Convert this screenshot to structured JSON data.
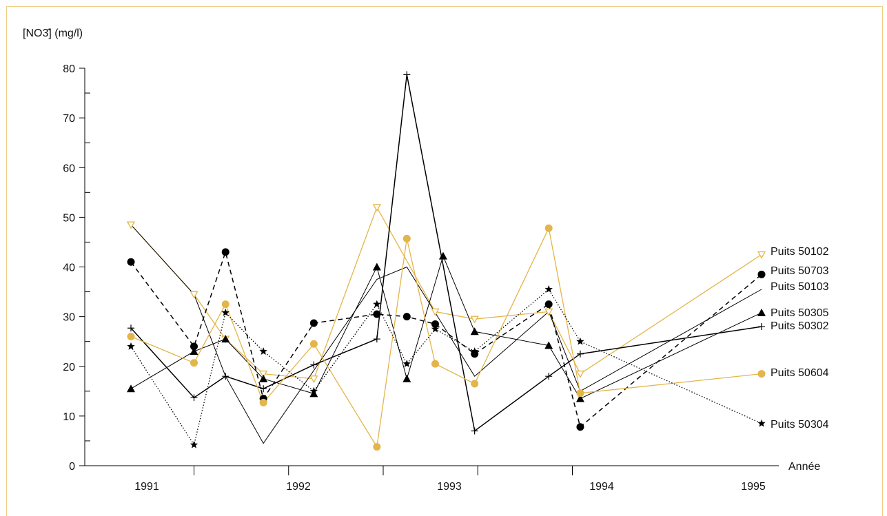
{
  "chart_data": {
    "type": "line",
    "ylabel": "[NO3̄] (mg/l)",
    "xlabel": "Année",
    "ylim": [
      0,
      80
    ],
    "y_ticks": [
      0,
      10,
      20,
      30,
      40,
      50,
      60,
      70,
      80
    ],
    "x_ticks": [
      "1991",
      "1992",
      "1993",
      "1994",
      "1995"
    ],
    "xlim": [
      1991.0,
      1995.0
    ],
    "grid": false,
    "legend": "right, labels at line ends",
    "series": [
      {
        "name": "Puits 50102",
        "color": "#e3b54a",
        "dash": "solid",
        "marker": "tri-down-open",
        "x": [
          1991.0,
          1991.4,
          1991.6,
          1991.84,
          1992.16,
          1992.56,
          1992.93,
          1993.18,
          1993.65,
          1993.85,
          1995.0
        ],
        "y": [
          48.5,
          34.5,
          25.5,
          18.5,
          17.5,
          52.0,
          31.0,
          29.5,
          31.0,
          18.5,
          42.5
        ]
      },
      {
        "name": "Puits 50703",
        "color": "#000000",
        "dash": "dashed",
        "marker": "circle",
        "x": [
          1991.0,
          1991.4,
          1991.6,
          1991.84,
          1992.16,
          1992.56,
          1992.75,
          1992.93,
          1993.18,
          1993.65,
          1993.85,
          1995.0
        ],
        "y": [
          41.0,
          24.0,
          43.0,
          13.5,
          28.7,
          30.5,
          30.0,
          28.5,
          22.5,
          32.5,
          7.8,
          38.5
        ]
      },
      {
        "name": "Puits 50103",
        "color": "#000000",
        "dash": "solid-thin",
        "marker": "none",
        "x": [
          1991.0,
          1991.4,
          1991.6,
          1991.84,
          1992.56,
          1992.75,
          1993.18,
          1993.65,
          1993.85,
          1995.0
        ],
        "y": [
          48.5,
          34.5,
          18.0,
          4.5,
          37.5,
          40.0,
          18.0,
          31.0,
          15.0,
          35.5
        ]
      },
      {
        "name": "Puits 50305",
        "color": "#000000",
        "dash": "solid-thin",
        "marker": "triangle",
        "x": [
          1991.0,
          1991.4,
          1991.6,
          1991.84,
          1992.16,
          1992.56,
          1992.75,
          1992.98,
          1993.18,
          1993.65,
          1993.85,
          1995.0
        ],
        "y": [
          15.5,
          23.0,
          25.5,
          17.5,
          14.5,
          40.0,
          17.5,
          42.2,
          27.0,
          24.2,
          13.5,
          30.8
        ]
      },
      {
        "name": "Puits 50302",
        "color": "#000000",
        "dash": "solid",
        "marker": "plus",
        "x": [
          1991.0,
          1991.4,
          1991.6,
          1991.84,
          1992.16,
          1992.56,
          1992.75,
          1993.18,
          1993.65,
          1993.85,
          1995.0
        ],
        "y": [
          27.7,
          13.7,
          18.0,
          15.5,
          20.3,
          25.5,
          78.7,
          7.0,
          18.0,
          22.5,
          28.0
        ]
      },
      {
        "name": "Puits 50604",
        "color": "#e3b54a",
        "dash": "solid",
        "marker": "circle",
        "x": [
          1991.0,
          1991.4,
          1991.6,
          1991.84,
          1992.16,
          1992.56,
          1992.75,
          1992.93,
          1993.18,
          1993.65,
          1993.85,
          1995.0
        ],
        "y": [
          26.0,
          20.7,
          32.5,
          12.7,
          24.5,
          3.8,
          45.7,
          20.5,
          16.5,
          47.8,
          14.6,
          18.5
        ]
      },
      {
        "name": "Puits 50304",
        "color": "#000000",
        "dash": "dotted",
        "marker": "star",
        "x": [
          1991.0,
          1991.4,
          1991.6,
          1991.84,
          1992.16,
          1992.56,
          1992.75,
          1992.93,
          1993.18,
          1993.65,
          1993.85,
          1995.0
        ],
        "y": [
          24.0,
          4.2,
          30.8,
          23.0,
          15.0,
          32.5,
          20.5,
          27.5,
          23.0,
          35.5,
          25.0,
          8.5
        ]
      }
    ]
  }
}
